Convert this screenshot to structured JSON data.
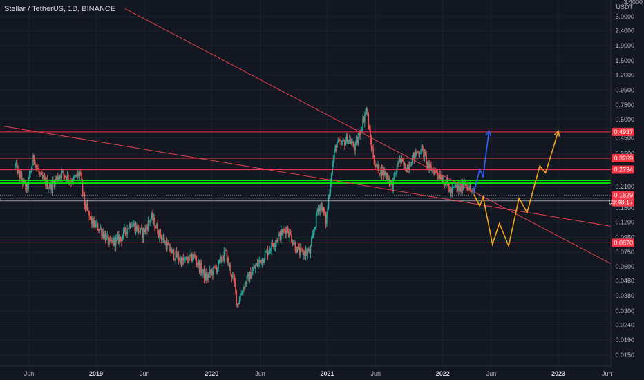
{
  "header": {
    "title": "Stellar / TetherUS, 1D, BINANCE"
  },
  "y_axis": {
    "unit_lines": [
      "3.4000",
      "USDT"
    ],
    "ticks": [
      "3.0000",
      "2.4000",
      "1.9000",
      "1.5000",
      "1.2000",
      "0.9500",
      "0.7500",
      "0.6000",
      "0.4500",
      "0.3500",
      "0.2700",
      "0.2100",
      "0.1500",
      "0.1200",
      "0.0950",
      "0.0750",
      "0.0600",
      "0.0480",
      "0.0380",
      "0.0300",
      "0.0240",
      "0.0190",
      "0.0150"
    ],
    "scale": "log"
  },
  "x_axis": {
    "ticks": [
      {
        "label": "Jun",
        "t": 2018.42,
        "bold": false
      },
      {
        "label": "2019",
        "t": 2019.0,
        "bold": true
      },
      {
        "label": "Jun",
        "t": 2019.42,
        "bold": false
      },
      {
        "label": "2020",
        "t": 2020.0,
        "bold": true
      },
      {
        "label": "Jun",
        "t": 2020.42,
        "bold": false
      },
      {
        "label": "2021",
        "t": 2021.0,
        "bold": true
      },
      {
        "label": "Jun",
        "t": 2021.42,
        "bold": false
      },
      {
        "label": "2022",
        "t": 2022.0,
        "bold": true
      },
      {
        "label": "Jun",
        "t": 2022.42,
        "bold": false
      },
      {
        "label": "2023",
        "t": 2023.0,
        "bold": true
      },
      {
        "label": "Jun",
        "t": 2023.42,
        "bold": false
      }
    ]
  },
  "price_badges": [
    {
      "label": "0.4937",
      "color": "#f23645"
    },
    {
      "label": "0.3269",
      "color": "#f23645"
    },
    {
      "label": "0.2734",
      "color": "#f23645"
    },
    {
      "label": "0.0870",
      "color": "#f23645"
    }
  ],
  "current_price": {
    "label": "0.1829",
    "countdown": "09:48:17",
    "color": "#f23645"
  },
  "colors": {
    "background": "#131722",
    "grid": "#1e222d",
    "up": "#26a69a",
    "down": "#ef5350",
    "resistance": "#f23645",
    "support_green": "#00e600",
    "gray_band": "#9598a1",
    "trendline": "#e5424f",
    "projection_blue": "#2962ff",
    "projection_orange": "#f7a21b"
  },
  "chart_data": {
    "type": "candlestick",
    "title": "Stellar / TetherUS, 1D, BINANCE",
    "x_range": [
      "2018-05",
      "2023-06"
    ],
    "y_scale": "log",
    "ylim": [
      0.0125,
      3.4
    ],
    "price_anchors": [
      {
        "t": 2018.3,
        "p": 0.29
      },
      {
        "t": 2018.35,
        "p": 0.24
      },
      {
        "t": 2018.4,
        "p": 0.2
      },
      {
        "t": 2018.46,
        "p": 0.33
      },
      {
        "t": 2018.52,
        "p": 0.24
      },
      {
        "t": 2018.6,
        "p": 0.21
      },
      {
        "t": 2018.7,
        "p": 0.26
      },
      {
        "t": 2018.8,
        "p": 0.23
      },
      {
        "t": 2018.86,
        "p": 0.26
      },
      {
        "t": 2018.9,
        "p": 0.16
      },
      {
        "t": 2018.96,
        "p": 0.12
      },
      {
        "t": 2019.05,
        "p": 0.105
      },
      {
        "t": 2019.12,
        "p": 0.085
      },
      {
        "t": 2019.22,
        "p": 0.095
      },
      {
        "t": 2019.3,
        "p": 0.12
      },
      {
        "t": 2019.4,
        "p": 0.1
      },
      {
        "t": 2019.48,
        "p": 0.13
      },
      {
        "t": 2019.55,
        "p": 0.1
      },
      {
        "t": 2019.65,
        "p": 0.075
      },
      {
        "t": 2019.75,
        "p": 0.065
      },
      {
        "t": 2019.85,
        "p": 0.07
      },
      {
        "t": 2019.95,
        "p": 0.05
      },
      {
        "t": 2020.05,
        "p": 0.06
      },
      {
        "t": 2020.12,
        "p": 0.075
      },
      {
        "t": 2020.2,
        "p": 0.045
      },
      {
        "t": 2020.22,
        "p": 0.033
      },
      {
        "t": 2020.28,
        "p": 0.045
      },
      {
        "t": 2020.38,
        "p": 0.06
      },
      {
        "t": 2020.45,
        "p": 0.07
      },
      {
        "t": 2020.55,
        "p": 0.09
      },
      {
        "t": 2020.65,
        "p": 0.11
      },
      {
        "t": 2020.75,
        "p": 0.075
      },
      {
        "t": 2020.85,
        "p": 0.075
      },
      {
        "t": 2020.92,
        "p": 0.15
      },
      {
        "t": 2020.95,
        "p": 0.16
      },
      {
        "t": 2020.99,
        "p": 0.12
      },
      {
        "t": 2021.04,
        "p": 0.28
      },
      {
        "t": 2021.08,
        "p": 0.42
      },
      {
        "t": 2021.12,
        "p": 0.4
      },
      {
        "t": 2021.18,
        "p": 0.45
      },
      {
        "t": 2021.24,
        "p": 0.38
      },
      {
        "t": 2021.3,
        "p": 0.55
      },
      {
        "t": 2021.34,
        "p": 0.72
      },
      {
        "t": 2021.37,
        "p": 0.45
      },
      {
        "t": 2021.42,
        "p": 0.28
      },
      {
        "t": 2021.47,
        "p": 0.27
      },
      {
        "t": 2021.52,
        "p": 0.25
      },
      {
        "t": 2021.56,
        "p": 0.21
      },
      {
        "t": 2021.62,
        "p": 0.32
      },
      {
        "t": 2021.68,
        "p": 0.28
      },
      {
        "t": 2021.75,
        "p": 0.34
      },
      {
        "t": 2021.82,
        "p": 0.38
      },
      {
        "t": 2021.88,
        "p": 0.28
      },
      {
        "t": 2021.93,
        "p": 0.27
      },
      {
        "t": 2021.98,
        "p": 0.25
      },
      {
        "t": 2022.03,
        "p": 0.22
      },
      {
        "t": 2022.07,
        "p": 0.19
      },
      {
        "t": 2022.11,
        "p": 0.21
      },
      {
        "t": 2022.15,
        "p": 0.2
      },
      {
        "t": 2022.19,
        "p": 0.23
      },
      {
        "t": 2022.23,
        "p": 0.2
      },
      {
        "t": 2022.27,
        "p": 0.185
      }
    ],
    "horizontal_levels": [
      {
        "price": 0.4937,
        "color_key": "resistance"
      },
      {
        "price": 0.3269,
        "color_key": "resistance"
      },
      {
        "price": 0.2734,
        "color_key": "resistance"
      },
      {
        "price": 0.226,
        "color_key": "support_green"
      },
      {
        "price": 0.1829,
        "color_key": "gray_band"
      },
      {
        "price": 0.087,
        "color_key": "resistance"
      }
    ],
    "trendlines": [
      {
        "from": {
          "t": 2019.25,
          "p": 3.4
        },
        "to": {
          "t": 2023.45,
          "p": 0.063
        }
      },
      {
        "from": {
          "t": 2018.2,
          "p": 0.54
        },
        "to": {
          "t": 2023.45,
          "p": 0.113
        }
      }
    ],
    "projections": [
      {
        "color_key": "projection_blue",
        "points": [
          {
            "t": 2022.27,
            "p": 0.19
          },
          {
            "t": 2022.32,
            "p": 0.275
          },
          {
            "t": 2022.35,
            "p": 0.245
          },
          {
            "t": 2022.4,
            "p": 0.5
          }
        ]
      },
      {
        "color_key": "projection_orange",
        "points": [
          {
            "t": 2022.27,
            "p": 0.185
          },
          {
            "t": 2022.32,
            "p": 0.155
          },
          {
            "t": 2022.35,
            "p": 0.178
          },
          {
            "t": 2022.43,
            "p": 0.085
          },
          {
            "t": 2022.49,
            "p": 0.118
          },
          {
            "t": 2022.57,
            "p": 0.083
          },
          {
            "t": 2022.66,
            "p": 0.175
          },
          {
            "t": 2022.73,
            "p": 0.14
          },
          {
            "t": 2022.84,
            "p": 0.29
          },
          {
            "t": 2022.89,
            "p": 0.26
          },
          {
            "t": 2023.0,
            "p": 0.5
          }
        ]
      }
    ]
  }
}
